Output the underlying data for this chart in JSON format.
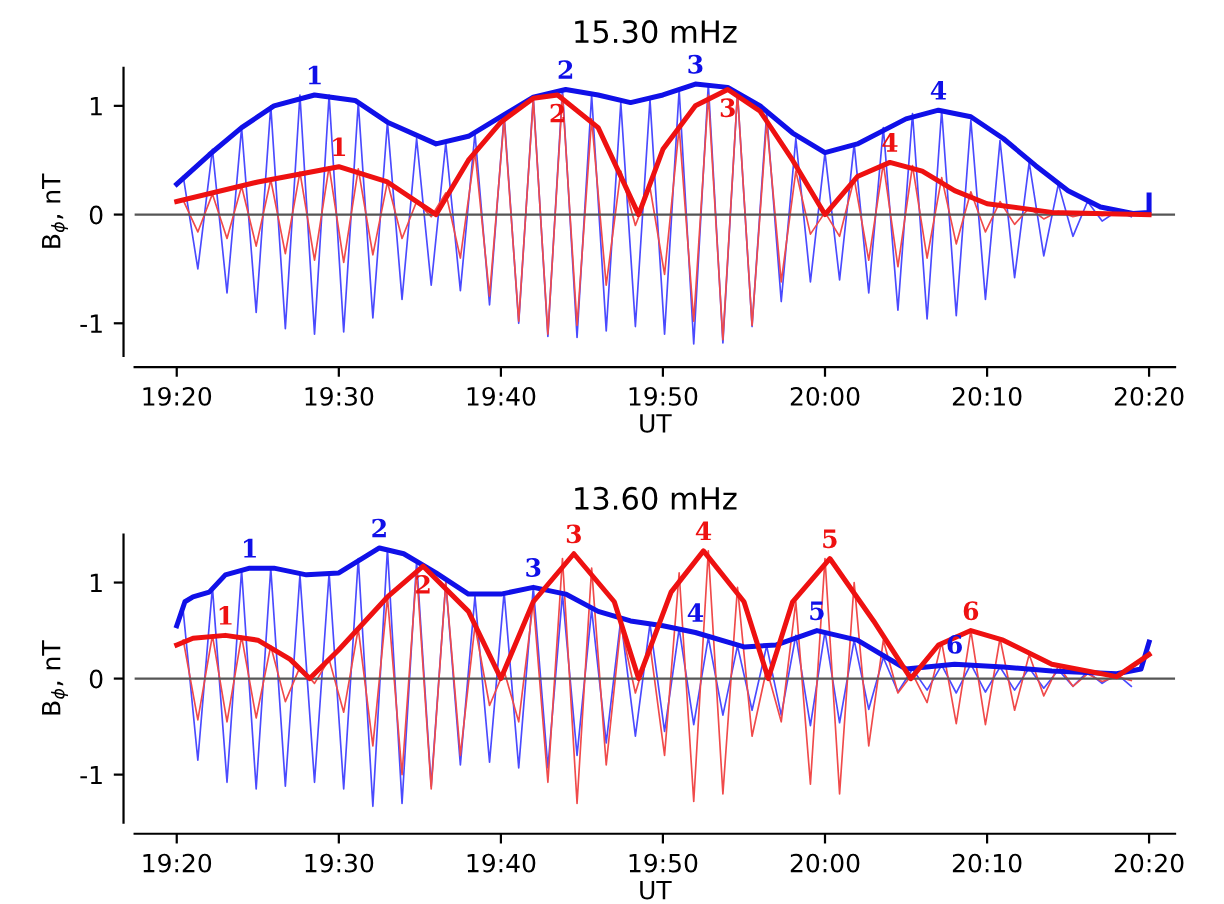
{
  "chart_data": [
    {
      "type": "line",
      "title": "15.30 mHz",
      "xlabel": "UT",
      "ylabel": "B$_{ϕ}$, nT",
      "xlim": [
        19.29,
        20.36
      ],
      "ylim": [
        -1.3,
        1.35
      ],
      "yticks": [
        -1,
        0,
        1
      ],
      "xticks": [
        {
          "value": 19.3333,
          "label": "19:20"
        },
        {
          "value": 19.5,
          "label": "19:30"
        },
        {
          "value": 19.6667,
          "label": "19:40"
        },
        {
          "value": 19.8333,
          "label": "19:50"
        },
        {
          "value": 20.0,
          "label": "20:00"
        },
        {
          "value": 20.1667,
          "label": "20:10"
        },
        {
          "value": 20.3333,
          "label": "20:20"
        }
      ],
      "grid": false,
      "legend": false,
      "line_style": "solid",
      "marker": "none",
      "ref_lines": [
        {
          "axis": "y",
          "value": 0,
          "color": "#555555"
        }
      ],
      "x": [
        19.34,
        19.355,
        19.37,
        19.385,
        19.4,
        19.415,
        19.43,
        19.445,
        19.46,
        19.475,
        19.49,
        19.505,
        19.52,
        19.535,
        19.55,
        19.565,
        19.58,
        19.595,
        19.61,
        19.625,
        19.64,
        19.655,
        19.67,
        19.685,
        19.7,
        19.715,
        19.73,
        19.745,
        19.76,
        19.775,
        19.79,
        19.805,
        19.82,
        19.835,
        19.85,
        19.865,
        19.88,
        19.895,
        19.91,
        19.925,
        19.94,
        19.955,
        19.97,
        19.985,
        20.0,
        20.015,
        20.03,
        20.045,
        20.06,
        20.075,
        20.09,
        20.105,
        20.12,
        20.135,
        20.15,
        20.165,
        20.18,
        20.195,
        20.21,
        20.225,
        20.24,
        20.255,
        20.27,
        20.285,
        20.3,
        20.315
      ],
      "series": [
        {
          "color": "#4a4aff",
          "values": [
            0.35,
            -0.5,
            0.6,
            -0.72,
            0.8,
            -0.9,
            1.0,
            -1.05,
            1.1,
            -1.1,
            1.1,
            -1.08,
            1.03,
            -0.95,
            0.85,
            -0.78,
            0.7,
            -0.65,
            0.66,
            -0.7,
            0.75,
            -0.83,
            0.92,
            -1.0,
            1.08,
            -1.12,
            1.15,
            -1.13,
            1.1,
            -1.07,
            1.03,
            -1.03,
            1.06,
            -1.1,
            1.15,
            -1.19,
            1.2,
            -1.18,
            1.12,
            -1.03,
            0.93,
            -0.8,
            0.7,
            -0.62,
            0.57,
            -0.6,
            0.65,
            -0.72,
            0.8,
            -0.88,
            0.93,
            -0.96,
            0.96,
            -0.93,
            0.87,
            -0.78,
            0.68,
            -0.58,
            0.48,
            -0.38,
            0.28,
            -0.2,
            0.12,
            -0.06,
            0.03,
            -0.02
          ]
        },
        {
          "color": "#f04a4a",
          "values": [
            0.13,
            -0.16,
            0.19,
            -0.22,
            0.26,
            -0.29,
            0.32,
            -0.36,
            0.39,
            -0.42,
            0.44,
            -0.44,
            0.42,
            -0.37,
            0.3,
            -0.22,
            0.12,
            -0.02,
            0.2,
            -0.4,
            0.58,
            -0.75,
            0.88,
            -0.98,
            1.06,
            -1.1,
            1.1,
            -1.02,
            0.88,
            -0.65,
            0.4,
            -0.1,
            0.25,
            -0.55,
            0.8,
            -0.98,
            1.1,
            -1.15,
            1.12,
            -1.02,
            0.85,
            -0.62,
            0.4,
            -0.18,
            0.02,
            -0.2,
            0.33,
            -0.42,
            0.47,
            -0.48,
            0.45,
            -0.4,
            0.34,
            -0.27,
            0.21,
            -0.16,
            0.12,
            -0.09,
            0.06,
            -0.04,
            0.03,
            -0.02,
            0.01,
            -0.01,
            0.01,
            0.0
          ]
        },
        {
          "color": "#1010e8",
          "x": [
            19.3333,
            19.3667,
            19.4,
            19.4333,
            19.475,
            19.5167,
            19.55,
            19.6,
            19.6333,
            19.6667,
            19.7,
            19.7333,
            19.7667,
            19.8,
            19.8333,
            19.8667,
            19.9,
            19.9333,
            19.9667,
            20.0,
            20.0333,
            20.0833,
            20.1167,
            20.15,
            20.1833,
            20.2167,
            20.25,
            20.2833,
            20.3167,
            20.3333,
            20.3333
          ],
          "values": [
            0.28,
            0.55,
            0.8,
            1.0,
            1.1,
            1.05,
            0.85,
            0.65,
            0.72,
            0.9,
            1.08,
            1.15,
            1.1,
            1.03,
            1.1,
            1.2,
            1.17,
            1.0,
            0.75,
            0.57,
            0.65,
            0.88,
            0.96,
            0.9,
            0.7,
            0.45,
            0.22,
            0.07,
            0.01,
            0.02,
            0.18
          ]
        },
        {
          "color": "#ee1111",
          "x": [
            19.3333,
            19.4167,
            19.5,
            19.55,
            19.6,
            19.6333,
            19.6667,
            19.7,
            19.725,
            19.7667,
            19.8083,
            19.8333,
            19.8667,
            19.9,
            19.9333,
            19.9667,
            20.0,
            20.0333,
            20.0667,
            20.1,
            20.1333,
            20.1667,
            20.2333,
            20.3333
          ],
          "values": [
            0.12,
            0.3,
            0.44,
            0.3,
            0.0,
            0.5,
            0.85,
            1.07,
            1.1,
            0.8,
            0.0,
            0.6,
            1.0,
            1.15,
            0.95,
            0.5,
            0.0,
            0.35,
            0.48,
            0.4,
            0.22,
            0.1,
            0.02,
            0.0
          ]
        }
      ],
      "annotations": [
        {
          "text": "1",
          "x": 19.475,
          "y": 1.1
        },
        {
          "text": "2",
          "x": 19.7333,
          "y": 1.15
        },
        {
          "text": "3",
          "x": 19.8667,
          "y": 1.2
        },
        {
          "text": "4",
          "x": 20.1167,
          "y": 0.96
        },
        {
          "text": "1",
          "x": 19.5,
          "y": 0.44
        },
        {
          "text": "2",
          "x": 19.725,
          "y": 1.1
        },
        {
          "text": "3",
          "x": 19.9,
          "y": 1.15
        },
        {
          "text": "4",
          "x": 20.0667,
          "y": 0.48
        }
      ]
    },
    {
      "type": "line",
      "title": "13.60 mHz",
      "xlabel": "UT",
      "ylabel": "B$_{ϕ}$, nT",
      "xlim": [
        19.29,
        20.36
      ],
      "ylim": [
        -1.5,
        1.5
      ],
      "yticks": [
        -1,
        0,
        1
      ],
      "xticks": [
        {
          "value": 19.3333,
          "label": "19:20"
        },
        {
          "value": 19.5,
          "label": "19:30"
        },
        {
          "value": 19.6667,
          "label": "19:40"
        },
        {
          "value": 19.8333,
          "label": "19:50"
        },
        {
          "value": 20.0,
          "label": "20:00"
        },
        {
          "value": 20.1667,
          "label": "20:10"
        },
        {
          "value": 20.3333,
          "label": "20:20"
        }
      ],
      "grid": false,
      "legend": false,
      "line_style": "solid",
      "marker": "none",
      "ref_lines": [
        {
          "axis": "y",
          "value": 0,
          "color": "#555555"
        }
      ],
      "x": [
        19.34,
        19.355,
        19.37,
        19.385,
        19.4,
        19.415,
        19.43,
        19.445,
        19.46,
        19.475,
        19.49,
        19.505,
        19.52,
        19.535,
        19.55,
        19.565,
        19.58,
        19.595,
        19.61,
        19.625,
        19.64,
        19.655,
        19.67,
        19.685,
        19.7,
        19.715,
        19.73,
        19.745,
        19.76,
        19.775,
        19.79,
        19.805,
        19.82,
        19.835,
        19.85,
        19.865,
        19.88,
        19.895,
        19.91,
        19.925,
        19.94,
        19.955,
        19.97,
        19.985,
        20.0,
        20.015,
        20.03,
        20.045,
        20.06,
        20.075,
        20.09,
        20.105,
        20.12,
        20.135,
        20.15,
        20.165,
        20.18,
        20.195,
        20.21,
        20.225,
        20.24,
        20.255,
        20.27,
        20.285,
        20.3,
        20.315
      ],
      "series": [
        {
          "color": "#4a4aff",
          "values": [
            0.7,
            -0.85,
            0.95,
            -1.08,
            1.13,
            -1.15,
            1.15,
            -1.12,
            1.08,
            -1.08,
            1.1,
            -1.15,
            1.25,
            -1.33,
            1.35,
            -1.3,
            1.22,
            -1.12,
            1.0,
            -0.9,
            0.86,
            -0.87,
            0.9,
            -0.93,
            0.95,
            -0.93,
            0.88,
            -0.8,
            0.72,
            -0.67,
            0.62,
            -0.6,
            0.57,
            -0.55,
            0.52,
            -0.48,
            0.43,
            -0.38,
            0.34,
            -0.33,
            0.34,
            -0.38,
            0.45,
            -0.49,
            0.49,
            -0.46,
            0.4,
            -0.32,
            0.22,
            -0.14,
            0.1,
            -0.12,
            0.14,
            -0.15,
            0.15,
            -0.14,
            0.12,
            -0.12,
            0.11,
            -0.1,
            0.09,
            -0.08,
            0.07,
            -0.05,
            0.05,
            -0.08
          ]
        },
        {
          "color": "#f04a4a",
          "values": [
            0.4,
            -0.43,
            0.45,
            -0.45,
            0.44,
            -0.41,
            0.34,
            -0.24,
            0.12,
            -0.05,
            0.2,
            -0.35,
            0.52,
            -0.7,
            0.85,
            -1.0,
            1.12,
            -1.15,
            1.0,
            -0.8,
            0.55,
            -0.28,
            0.08,
            -0.45,
            0.8,
            -1.08,
            1.25,
            -1.3,
            1.15,
            -0.9,
            0.55,
            -0.15,
            0.35,
            -0.8,
            1.1,
            -1.28,
            1.33,
            -1.2,
            0.95,
            -0.6,
            0.1,
            -0.45,
            0.8,
            -1.1,
            1.25,
            -1.2,
            1.0,
            -0.7,
            0.4,
            -0.15,
            0.05,
            -0.25,
            0.38,
            -0.47,
            0.5,
            -0.48,
            0.42,
            -0.33,
            0.25,
            -0.18,
            0.13,
            -0.08,
            0.05,
            -0.03,
            0.02,
            -0.02
          ]
        },
        {
          "color": "#1010e8",
          "x": [
            19.3333,
            19.3417,
            19.35,
            19.3667,
            19.3833,
            19.4083,
            19.4333,
            19.4667,
            19.5,
            19.5417,
            19.5667,
            19.6,
            19.6333,
            19.6667,
            19.7,
            19.7333,
            19.7667,
            19.8,
            19.8333,
            19.8667,
            19.9167,
            19.95,
            19.9917,
            20.0333,
            20.0833,
            20.1333,
            20.1833,
            20.2333,
            20.3,
            20.325,
            20.3333
          ],
          "values": [
            0.55,
            0.8,
            0.85,
            0.9,
            1.08,
            1.15,
            1.15,
            1.08,
            1.1,
            1.36,
            1.3,
            1.1,
            0.88,
            0.88,
            0.95,
            0.88,
            0.7,
            0.6,
            0.55,
            0.48,
            0.33,
            0.35,
            0.5,
            0.4,
            0.1,
            0.15,
            0.12,
            0.08,
            0.05,
            0.1,
            0.38
          ]
        },
        {
          "color": "#ee1111",
          "x": [
            19.3333,
            19.35,
            19.3833,
            19.4167,
            19.45,
            19.47,
            19.5,
            19.55,
            19.5867,
            19.6333,
            19.6667,
            19.7,
            19.7417,
            19.7833,
            19.8083,
            19.8417,
            19.875,
            19.9167,
            19.9417,
            19.9667,
            20.005,
            20.05,
            20.0883,
            20.1167,
            20.15,
            20.1833,
            20.2333,
            20.3,
            20.3333
          ],
          "values": [
            0.35,
            0.42,
            0.45,
            0.4,
            0.2,
            0.0,
            0.3,
            0.85,
            1.17,
            0.7,
            0.0,
            0.8,
            1.3,
            0.8,
            0.0,
            0.9,
            1.33,
            0.8,
            0.0,
            0.8,
            1.25,
            0.6,
            0.0,
            0.35,
            0.5,
            0.4,
            0.15,
            0.02,
            0.25
          ]
        }
      ],
      "annotations": [
        {
          "text": "1",
          "x": 19.4083,
          "y": 1.15
        },
        {
          "text": "2",
          "x": 19.5417,
          "y": 1.36
        },
        {
          "text": "3",
          "x": 19.7,
          "y": 0.95
        },
        {
          "text": "4",
          "x": 19.8667,
          "y": 0.48
        },
        {
          "text": "5",
          "x": 19.9917,
          "y": 0.5
        },
        {
          "text": "6",
          "x": 20.1333,
          "y": 0.15
        },
        {
          "text": "1",
          "x": 19.3833,
          "y": 0.45
        },
        {
          "text": "2",
          "x": 19.5867,
          "y": 1.17
        },
        {
          "text": "3",
          "x": 19.7417,
          "y": 1.3
        },
        {
          "text": "4",
          "x": 19.875,
          "y": 1.33
        },
        {
          "text": "5",
          "x": 20.005,
          "y": 1.25
        },
        {
          "text": "6",
          "x": 20.15,
          "y": 0.5
        }
      ]
    }
  ]
}
